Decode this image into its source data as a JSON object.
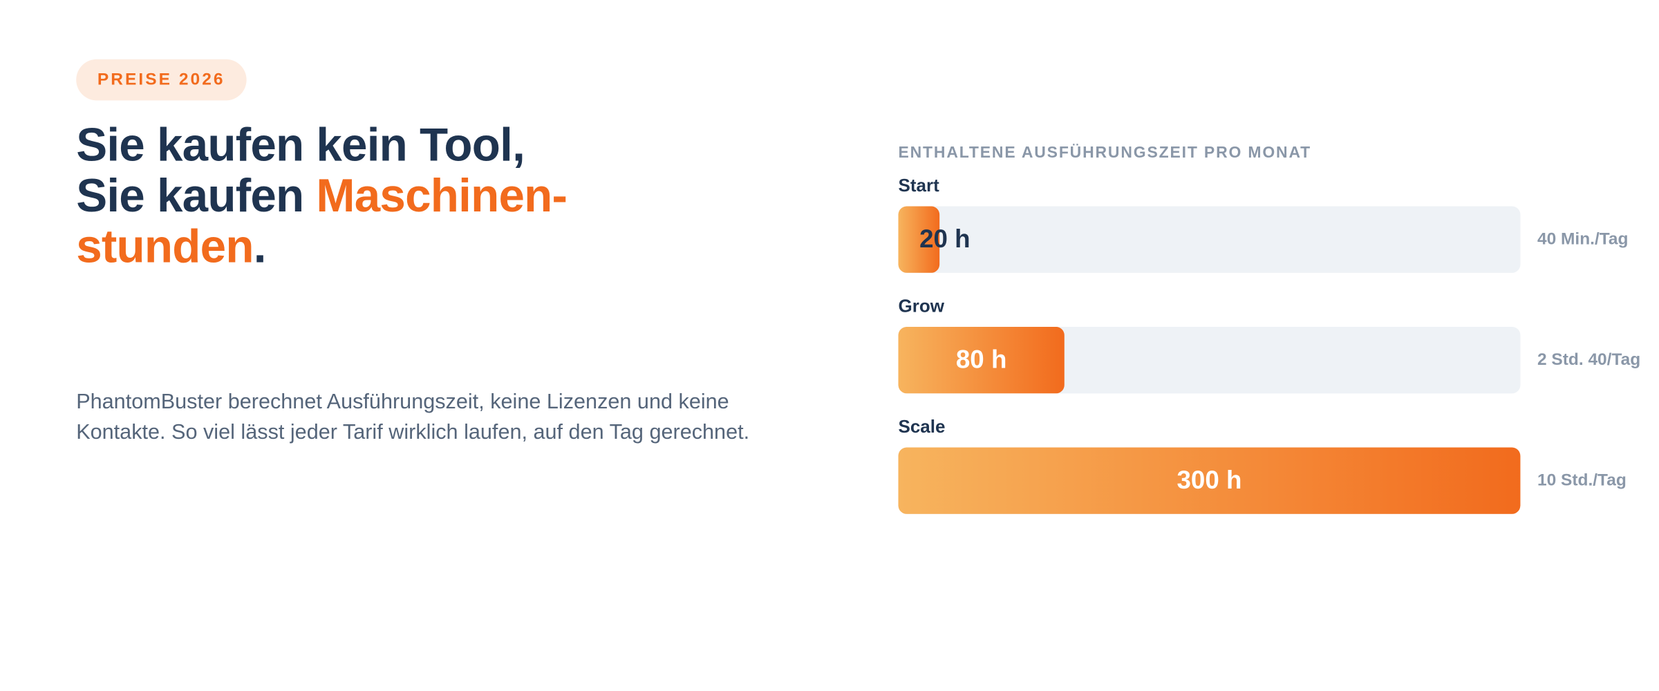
{
  "badge": "PREISE 2026",
  "headline": {
    "line1": "Sie kaufen kein Tool,",
    "line2_prefix": "Sie kaufen ",
    "line2_accent": "Maschinen-",
    "line3_accent": "stunden",
    "line3_suffix": "."
  },
  "intro": "PhantomBuster berechnet Ausführungszeit, keine Lizenzen und keine Kontakte. So viel lässt jeder Tarif wirklich laufen, auf den Tag gerechnet.",
  "tiers_heading": "ENTHALTENE AUSFÜHRUNGSZEIT PRO MONAT",
  "colors": {
    "accent": "#f26b1d",
    "accent_light": "#f7b45e",
    "navy": "#1f3450",
    "track": "#eef2f6",
    "badge_bg": "#fdebdf"
  },
  "tiers": [
    {
      "name": "Start",
      "value_label": "20 h",
      "hours": 20,
      "per_day": "40 Min./Tag"
    },
    {
      "name": "Grow",
      "value_label": "80 h",
      "hours": 80,
      "per_day": "2 Std. 40/Tag"
    },
    {
      "name": "Scale",
      "value_label": "300 h",
      "hours": 300,
      "per_day": "10 Std./Tag"
    }
  ],
  "max_hours": 300
}
